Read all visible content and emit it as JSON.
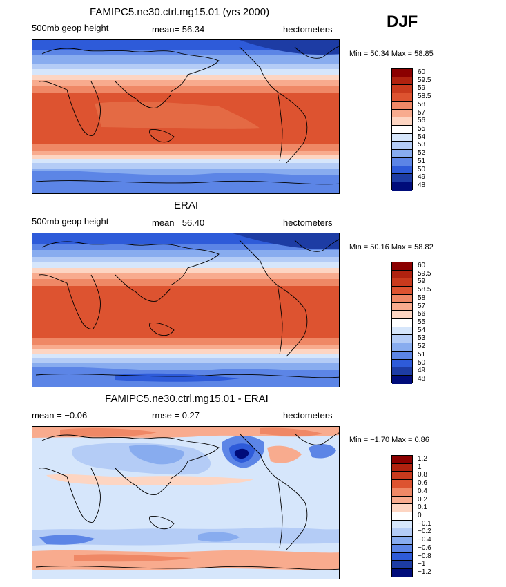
{
  "season": "DJF",
  "panels": [
    {
      "title": "FAMIPC5.ne30.ctrl.mg15.01 (yrs 2000)",
      "left": "500mb geop height",
      "stat": "mean=  56.34",
      "units": "hectometers",
      "minmax": "Min =  50.34 Max =  58.85",
      "colorbar": [
        "60",
        "59.5",
        "59",
        "58.5",
        "58",
        "57",
        "56",
        "55",
        "54",
        "53",
        "52",
        "51",
        "50",
        "49",
        "48"
      ],
      "colors": [
        "#8b0000",
        "#b0220f",
        "#c93a1d",
        "#dd5330",
        "#ef8866",
        "#f8ab8e",
        "#fdd5c2",
        "#ffffff",
        "#d6e6fb",
        "#b4ccf6",
        "#88acef",
        "#5c85e6",
        "#2e5bd9",
        "#1d3ca4",
        "#000c7a"
      ]
    },
    {
      "title": "ERAI",
      "left": "500mb geop height",
      "stat": "mean=  56.40",
      "units": "hectometers",
      "minmax": "Min =  50.16 Max =  58.82",
      "colorbar": [
        "60",
        "59.5",
        "59",
        "58.5",
        "58",
        "57",
        "56",
        "55",
        "54",
        "53",
        "52",
        "51",
        "50",
        "49",
        "48"
      ],
      "colors": [
        "#8b0000",
        "#b0220f",
        "#c93a1d",
        "#dd5330",
        "#ef8866",
        "#f8ab8e",
        "#fdd5c2",
        "#ffffff",
        "#d6e6fb",
        "#b4ccf6",
        "#88acef",
        "#5c85e6",
        "#2e5bd9",
        "#1d3ca4",
        "#000c7a"
      ]
    },
    {
      "title": "FAMIPC5.ne30.ctrl.mg15.01 - ERAI",
      "left": "mean =  −0.06",
      "stat": "rmse =   0.27",
      "units": "hectometers",
      "minmax": "Min =  −1.70 Max =   0.86",
      "colorbar": [
        "1.2",
        "1",
        "0.8",
        "0.6",
        "0.4",
        "0.2",
        "0.1",
        "0",
        "−0.1",
        "−0.2",
        "−0.4",
        "−0.6",
        "−0.8",
        "−1",
        "−1.2"
      ],
      "colors": [
        "#8b0000",
        "#b0220f",
        "#c93a1d",
        "#dd5330",
        "#ef8866",
        "#f8ab8e",
        "#fdd5c2",
        "#ffffff",
        "#d6e6fb",
        "#b4ccf6",
        "#88acef",
        "#5c85e6",
        "#2e5bd9",
        "#1d3ca4",
        "#000c7a"
      ]
    }
  ]
}
